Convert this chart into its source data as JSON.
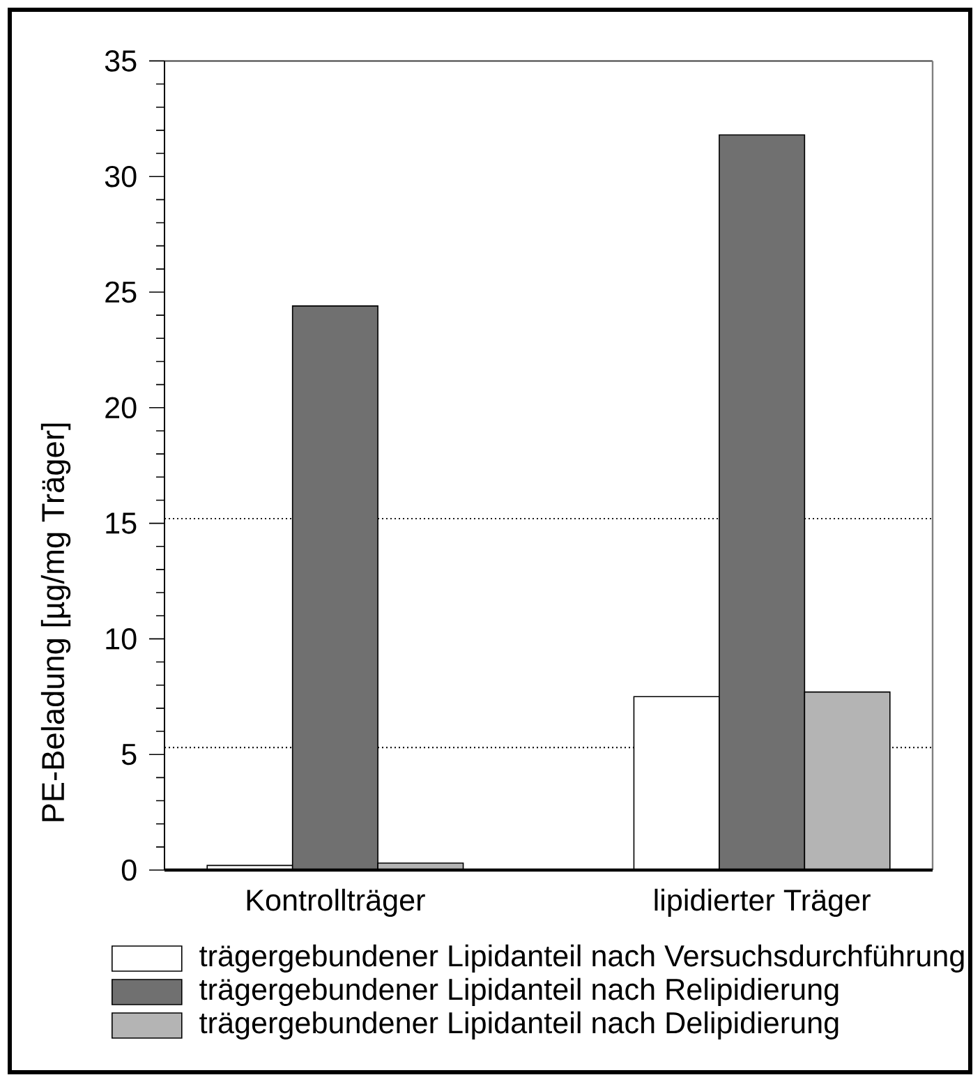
{
  "chart_data": {
    "type": "bar",
    "ylabel": "PE-Beladung [µg/mg Träger]",
    "categories": [
      "Kontrollträger",
      "lipidierter Träger"
    ],
    "series": [
      {
        "name": "trägergebundener Lipidanteil nach Versuchsdurchführung",
        "color": "#ffffff",
        "values": [
          0.2,
          7.5
        ]
      },
      {
        "name": "trägergebundener Lipidanteil nach Relipidierung",
        "color": "#707070",
        "values": [
          24.4,
          31.8
        ]
      },
      {
        "name": "trägergebundener Lipidanteil nach Delipidierung",
        "color": "#b4b4b4",
        "values": [
          0.3,
          7.7
        ]
      }
    ],
    "ylim": [
      0,
      35
    ],
    "yticks": [
      0,
      {
        "value": 1,
        "label": null
      },
      {
        "value": 2,
        "label": null
      },
      {
        "value": 3,
        "label": null
      },
      {
        "value": 4,
        "label": null
      },
      5,
      {
        "value": 6,
        "label": null
      },
      {
        "value": 7,
        "label": null
      },
      {
        "value": 8,
        "label": null
      },
      {
        "value": 9,
        "label": null
      },
      10,
      {
        "value": 11,
        "label": null
      },
      {
        "value": 12,
        "label": null
      },
      {
        "value": 13,
        "label": null
      },
      {
        "value": 14,
        "label": null
      },
      15,
      {
        "value": 16,
        "label": null
      },
      {
        "value": 17,
        "label": null
      },
      {
        "value": 18,
        "label": null
      },
      {
        "value": 19,
        "label": null
      },
      20,
      {
        "value": 21,
        "label": null
      },
      {
        "value": 22,
        "label": null
      },
      {
        "value": 23,
        "label": null
      },
      {
        "value": 24,
        "label": null
      },
      25,
      {
        "value": 26,
        "label": null
      },
      {
        "value": 27,
        "label": null
      },
      {
        "value": 28,
        "label": null
      },
      {
        "value": 29,
        "label": null
      },
      30,
      {
        "value": 31,
        "label": null
      },
      {
        "value": 32,
        "label": null
      },
      {
        "value": 33,
        "label": null
      },
      {
        "value": 34,
        "label": null
      },
      35
    ],
    "ref_lines": [
      {
        "axis": "y",
        "value": 15.2,
        "line_style": "dotted",
        "color": "#000000"
      },
      {
        "axis": "y",
        "value": 5.3,
        "line_style": "dotted",
        "color": "#000000"
      }
    ],
    "legend": "bottom"
  }
}
